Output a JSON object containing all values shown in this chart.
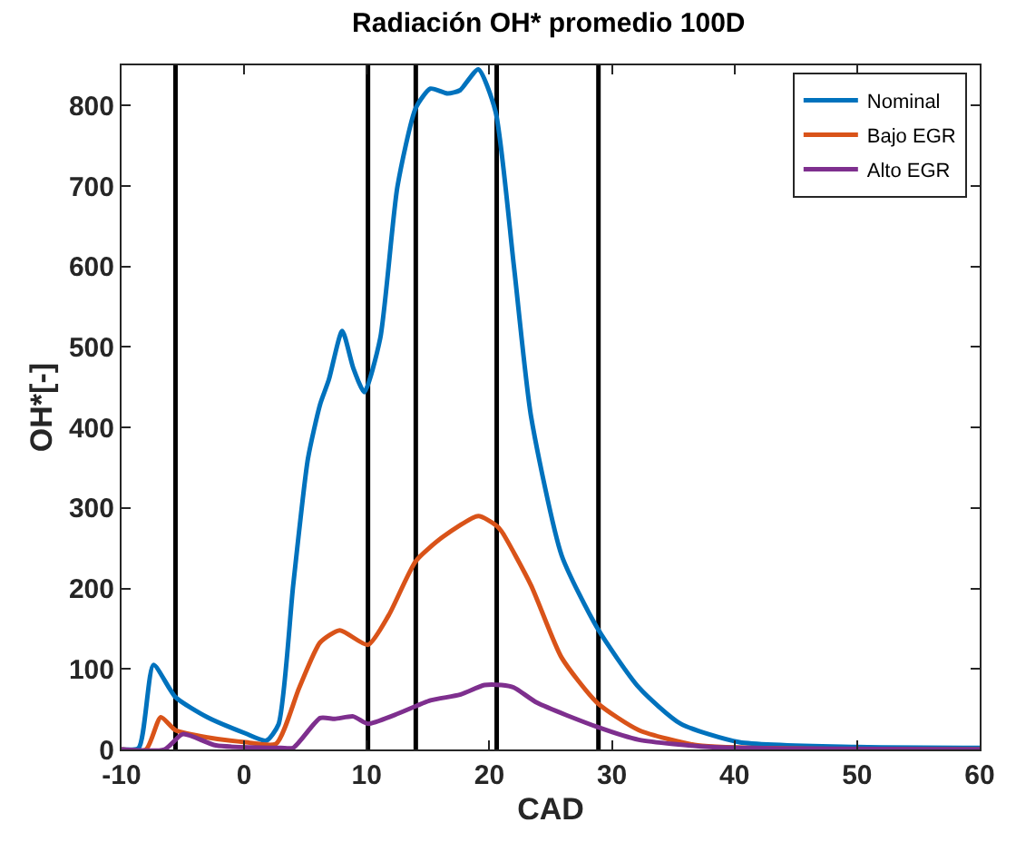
{
  "chart_data": {
    "type": "line",
    "title": "Radiación OH* promedio 100D",
    "xlabel": "CAD",
    "ylabel": "OH*[-]",
    "xlim": [
      -10,
      60
    ],
    "ylim": [
      0,
      850
    ],
    "xticks": [
      -10,
      0,
      10,
      20,
      30,
      40,
      50,
      60
    ],
    "yticks": [
      0,
      100,
      200,
      300,
      400,
      500,
      600,
      700,
      800
    ],
    "legend": "top right",
    "line_style": "solid",
    "marker": "none",
    "series": [
      {
        "name": "Nominal",
        "color": "#0072bd",
        "x": [
          -10,
          -8.6,
          -7.4,
          -5.6,
          -3,
          0.1,
          1.8,
          2.8,
          4.0,
          5.2,
          6.2,
          6.9,
          8.0,
          8.9,
          9.8,
          11.1,
          12.5,
          14.0,
          15.2,
          16.6,
          17.6,
          19.1,
          20.5,
          22.0,
          23.4,
          25.9,
          28.8,
          32.2,
          35.6,
          40.4,
          50,
          60
        ],
        "values": [
          0,
          2,
          105,
          65,
          40,
          20,
          11,
          31,
          204,
          361,
          429,
          459,
          520,
          474,
          444,
          511,
          699,
          797,
          821,
          815,
          819,
          845,
          793,
          601,
          414,
          241,
          151,
          77,
          32,
          9,
          3,
          2
        ]
      },
      {
        "name": "Bajo EGR",
        "color": "#d95319",
        "x": [
          -10,
          -8,
          -6.8,
          -5.6,
          -3,
          0.1,
          2.6,
          4.5,
          6.2,
          7.8,
          10.1,
          11.8,
          14.0,
          16.2,
          19.1,
          20.5,
          21.0,
          23.4,
          25.9,
          28.8,
          32.2,
          37,
          45,
          60
        ],
        "values": [
          0,
          0,
          40,
          24,
          15,
          9,
          7,
          77,
          133,
          148,
          130,
          167,
          234,
          264,
          290,
          279,
          271,
          204,
          114,
          58,
          24,
          5,
          1,
          0
        ]
      },
      {
        "name": "Alto EGR",
        "color": "#7e2f8e",
        "x": [
          -10,
          -6.5,
          -5,
          -2.3,
          3,
          4,
          6.2,
          7.4,
          8.9,
          10.1,
          12.3,
          15.2,
          17.6,
          19.6,
          21.0,
          22.0,
          23.9,
          28.8,
          32.2,
          38,
          45,
          60
        ],
        "values": [
          0,
          0,
          19,
          5,
          2,
          2,
          39,
          38,
          41,
          32,
          43,
          61,
          68,
          80,
          80,
          77,
          58,
          28,
          12,
          3,
          1,
          0
        ]
      }
    ],
    "ref_lines": [
      {
        "axis": "x",
        "value": -5.6,
        "color": "#000000"
      },
      {
        "axis": "x",
        "value": 10.1,
        "color": "#000000"
      },
      {
        "axis": "x",
        "value": 14.0,
        "color": "#000000"
      },
      {
        "axis": "x",
        "value": 20.6,
        "color": "#000000"
      },
      {
        "axis": "x",
        "value": 28.9,
        "color": "#000000"
      }
    ]
  }
}
